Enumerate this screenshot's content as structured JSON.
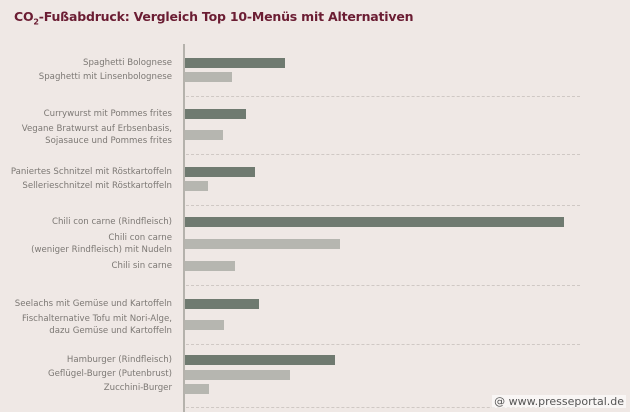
{
  "title": {
    "prefix": "CO",
    "sub": "2",
    "rest": "-Fußabdruck: Vergleich Top 10-Menüs mit Alternativen"
  },
  "credit": "@ www.presseportal.de",
  "colors": {
    "main": "#6f7a70",
    "alternative": "#b6b6b0",
    "title": "#6b1d33",
    "background": "#efe8e5"
  },
  "chart_data": {
    "type": "bar",
    "orientation": "horizontal",
    "title": "CO2-Fußabdruck: Vergleich Top 10-Menüs mit Alternativen",
    "xlabel": "",
    "ylabel": "",
    "unit": "relative bar length (px from axis, no scale shown)",
    "grid": false,
    "groups": [
      {
        "items": [
          {
            "label": "Spaghetti Bolognese",
            "value": 100,
            "type": "main"
          },
          {
            "label": "Spaghetti mit Linsenbolognese",
            "value": 47,
            "type": "alternative"
          }
        ]
      },
      {
        "items": [
          {
            "label": "Currywurst mit Pommes frites",
            "value": 61,
            "type": "main"
          },
          {
            "label": "Vegane Bratwurst auf Erbsenbasis, Sojasauce und Pommes frites",
            "value": 38,
            "type": "alternative"
          }
        ]
      },
      {
        "items": [
          {
            "label": "Paniertes Schnitzel mit Röstkartoffeln",
            "value": 70,
            "type": "main"
          },
          {
            "label": "Sellerieschnitzel mit Röstkartoffeln",
            "value": 23,
            "type": "alternative"
          }
        ]
      },
      {
        "items": [
          {
            "label": "Chili con carne (Rindfleisch)",
            "value": 379,
            "type": "main"
          },
          {
            "label": "Chili con carne (weniger Rindfleisch) mit Nudeln",
            "value": 155,
            "type": "alternative"
          },
          {
            "label": "Chili sin carne",
            "value": 50,
            "type": "alternative"
          }
        ]
      },
      {
        "items": [
          {
            "label": "Seelachs mit Gemüse und Kartoffeln",
            "value": 74,
            "type": "main"
          },
          {
            "label": "Fischalternative Tofu mit Nori-Alge, dazu Gemüse und Kartoffeln",
            "value": 39,
            "type": "alternative"
          }
        ]
      },
      {
        "items": [
          {
            "label": "Hamburger (Rindfleisch)",
            "value": 150,
            "type": "main"
          },
          {
            "label": "Geflügel-Burger (Putenbrust)",
            "value": 105,
            "type": "alternative"
          },
          {
            "label": "Zucchini-Burger",
            "value": 24,
            "type": "alternative"
          }
        ]
      }
    ]
  },
  "labels": {
    "l0": "Spaghetti Bolognese",
    "l1": "Spaghetti mit Linsenbolognese",
    "l2": "Currywurst mit Pommes frites",
    "l3a": "Vegane Bratwurst auf Erbsenbasis,",
    "l3b": "Sojasauce und Pommes frites",
    "l4": "Paniertes Schnitzel mit Röstkartoffeln",
    "l5": "Sellerieschnitzel mit Röstkartoffeln",
    "l6": "Chili con carne (Rindfleisch)",
    "l7a": "Chili con carne",
    "l7b": "(weniger Rindfleisch) mit Nudeln",
    "l8": "Chili sin carne",
    "l9": "Seelachs mit Gemüse und Kartoffeln",
    "l10a": "Fischalternative Tofu mit Nori-Alge,",
    "l10b": "dazu Gemüse und Kartoffeln",
    "l11": "Hamburger (Rindfleisch)",
    "l12": "Geflügel-Burger (Putenbrust)",
    "l13": "Zucchini-Burger"
  }
}
